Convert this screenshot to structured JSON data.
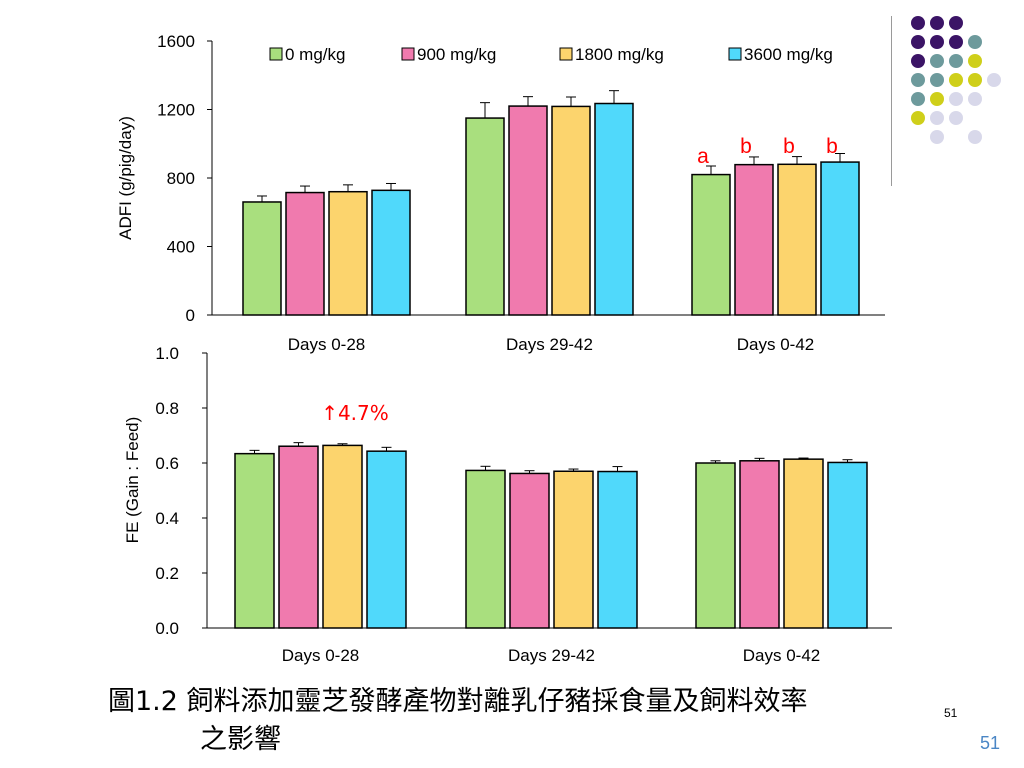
{
  "colors": {
    "0 mg/kg": "#a9df7e",
    "900 mg/kg": "#f07aae",
    "1800 mg/kg": "#fcd46d",
    "3600 mg/kg": "#50d9fb",
    "sig_letter": "#ff0000",
    "slide_number": "#4a86c5"
  },
  "chart_data": [
    {
      "type": "bar",
      "ylabel": "ADFI (g/pig/day)",
      "categories": [
        "Days 0-28",
        "Days 29-42",
        "Days 0-42"
      ],
      "yticks": [
        "0",
        "400",
        "800",
        "1200",
        "1600"
      ],
      "ylim": [
        0,
        1600
      ],
      "legend": "top",
      "series": [
        {
          "name": "0 mg/kg",
          "values": [
            660,
            1150,
            820
          ],
          "errors": [
            35,
            90,
            50
          ]
        },
        {
          "name": "900 mg/kg",
          "values": [
            715,
            1220,
            878
          ],
          "errors": [
            38,
            55,
            45
          ]
        },
        {
          "name": "1800 mg/kg",
          "values": [
            720,
            1218,
            880
          ],
          "errors": [
            40,
            55,
            45
          ]
        },
        {
          "name": "3600 mg/kg",
          "values": [
            728,
            1235,
            893
          ],
          "errors": [
            40,
            75,
            50
          ]
        }
      ],
      "annotations": [
        {
          "category": "Days 0-42",
          "series": "0 mg/kg",
          "text": "a"
        },
        {
          "category": "Days 0-42",
          "series": "900 mg/kg",
          "text": "b"
        },
        {
          "category": "Days 0-42",
          "series": "1800 mg/kg",
          "text": "b"
        },
        {
          "category": "Days 0-42",
          "series": "3600 mg/kg",
          "text": "b"
        }
      ]
    },
    {
      "type": "bar",
      "ylabel": "FE (Gain : Feed)",
      "categories": [
        "Days 0-28",
        "Days 29-42",
        "Days 0-42"
      ],
      "yticks": [
        "0.0",
        "0.2",
        "0.4",
        "0.6",
        "0.8",
        "1.0"
      ],
      "ylim": [
        0,
        1.0
      ],
      "series": [
        {
          "name": "0 mg/kg",
          "values": [
            0.634,
            0.573,
            0.6
          ],
          "errors": [
            0.012,
            0.015,
            0.008
          ]
        },
        {
          "name": "900 mg/kg",
          "values": [
            0.661,
            0.562,
            0.608
          ],
          "errors": [
            0.013,
            0.01,
            0.009
          ]
        },
        {
          "name": "1800 mg/kg",
          "values": [
            0.664,
            0.57,
            0.614
          ],
          "errors": [
            0.006,
            0.008,
            0.004
          ]
        },
        {
          "name": "3600 mg/kg",
          "values": [
            0.643,
            0.569,
            0.602
          ],
          "errors": [
            0.014,
            0.018,
            0.01
          ]
        }
      ],
      "annotations": [
        {
          "category": "Days 0-28",
          "text": "↑4.7%"
        }
      ]
    }
  ],
  "caption": {
    "line1": "圖1.2 飼料添加靈芝發酵產物對離乳仔豬採食量及飼料效率",
    "line2": "之影響"
  },
  "slide_number_small": "51",
  "slide_number": "51",
  "decor_dot_colors": [
    "#3b1466",
    "#6d9a9c",
    "#cfcf1a",
    "#d8d8ea"
  ]
}
